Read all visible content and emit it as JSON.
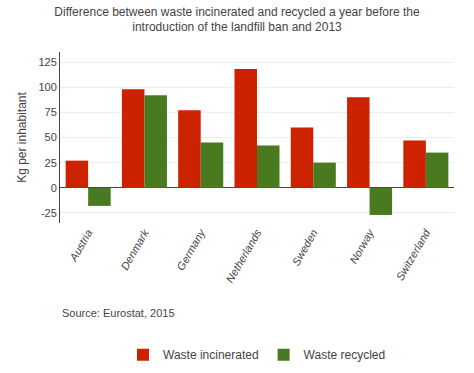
{
  "chart_data": {
    "type": "bar",
    "title": "Difference between waste incinerated and recycled a year before the\nintroduction of the landfill ban and 2013",
    "y_label": "Kg per inhabitant",
    "categories": [
      "Austria",
      "Denmark",
      "Germany",
      "Netherlands",
      "Sweden",
      "Norway",
      "Switzerland"
    ],
    "series": [
      {
        "name": "Waste incinerated",
        "color": "#cc2200",
        "values": [
          27,
          98,
          77,
          118,
          60,
          90,
          47
        ]
      },
      {
        "name": "Waste recycled",
        "color": "#4a7a20",
        "values": [
          -18,
          92,
          45,
          42,
          25,
          -27,
          35
        ]
      }
    ],
    "ylim": [
      -35,
      135
    ],
    "yticks": [
      -25,
      0,
      25,
      50,
      75,
      100,
      125
    ],
    "grid": true,
    "legend": "bottom",
    "annotations": [
      "Source: Eurostat, 2015"
    ]
  }
}
